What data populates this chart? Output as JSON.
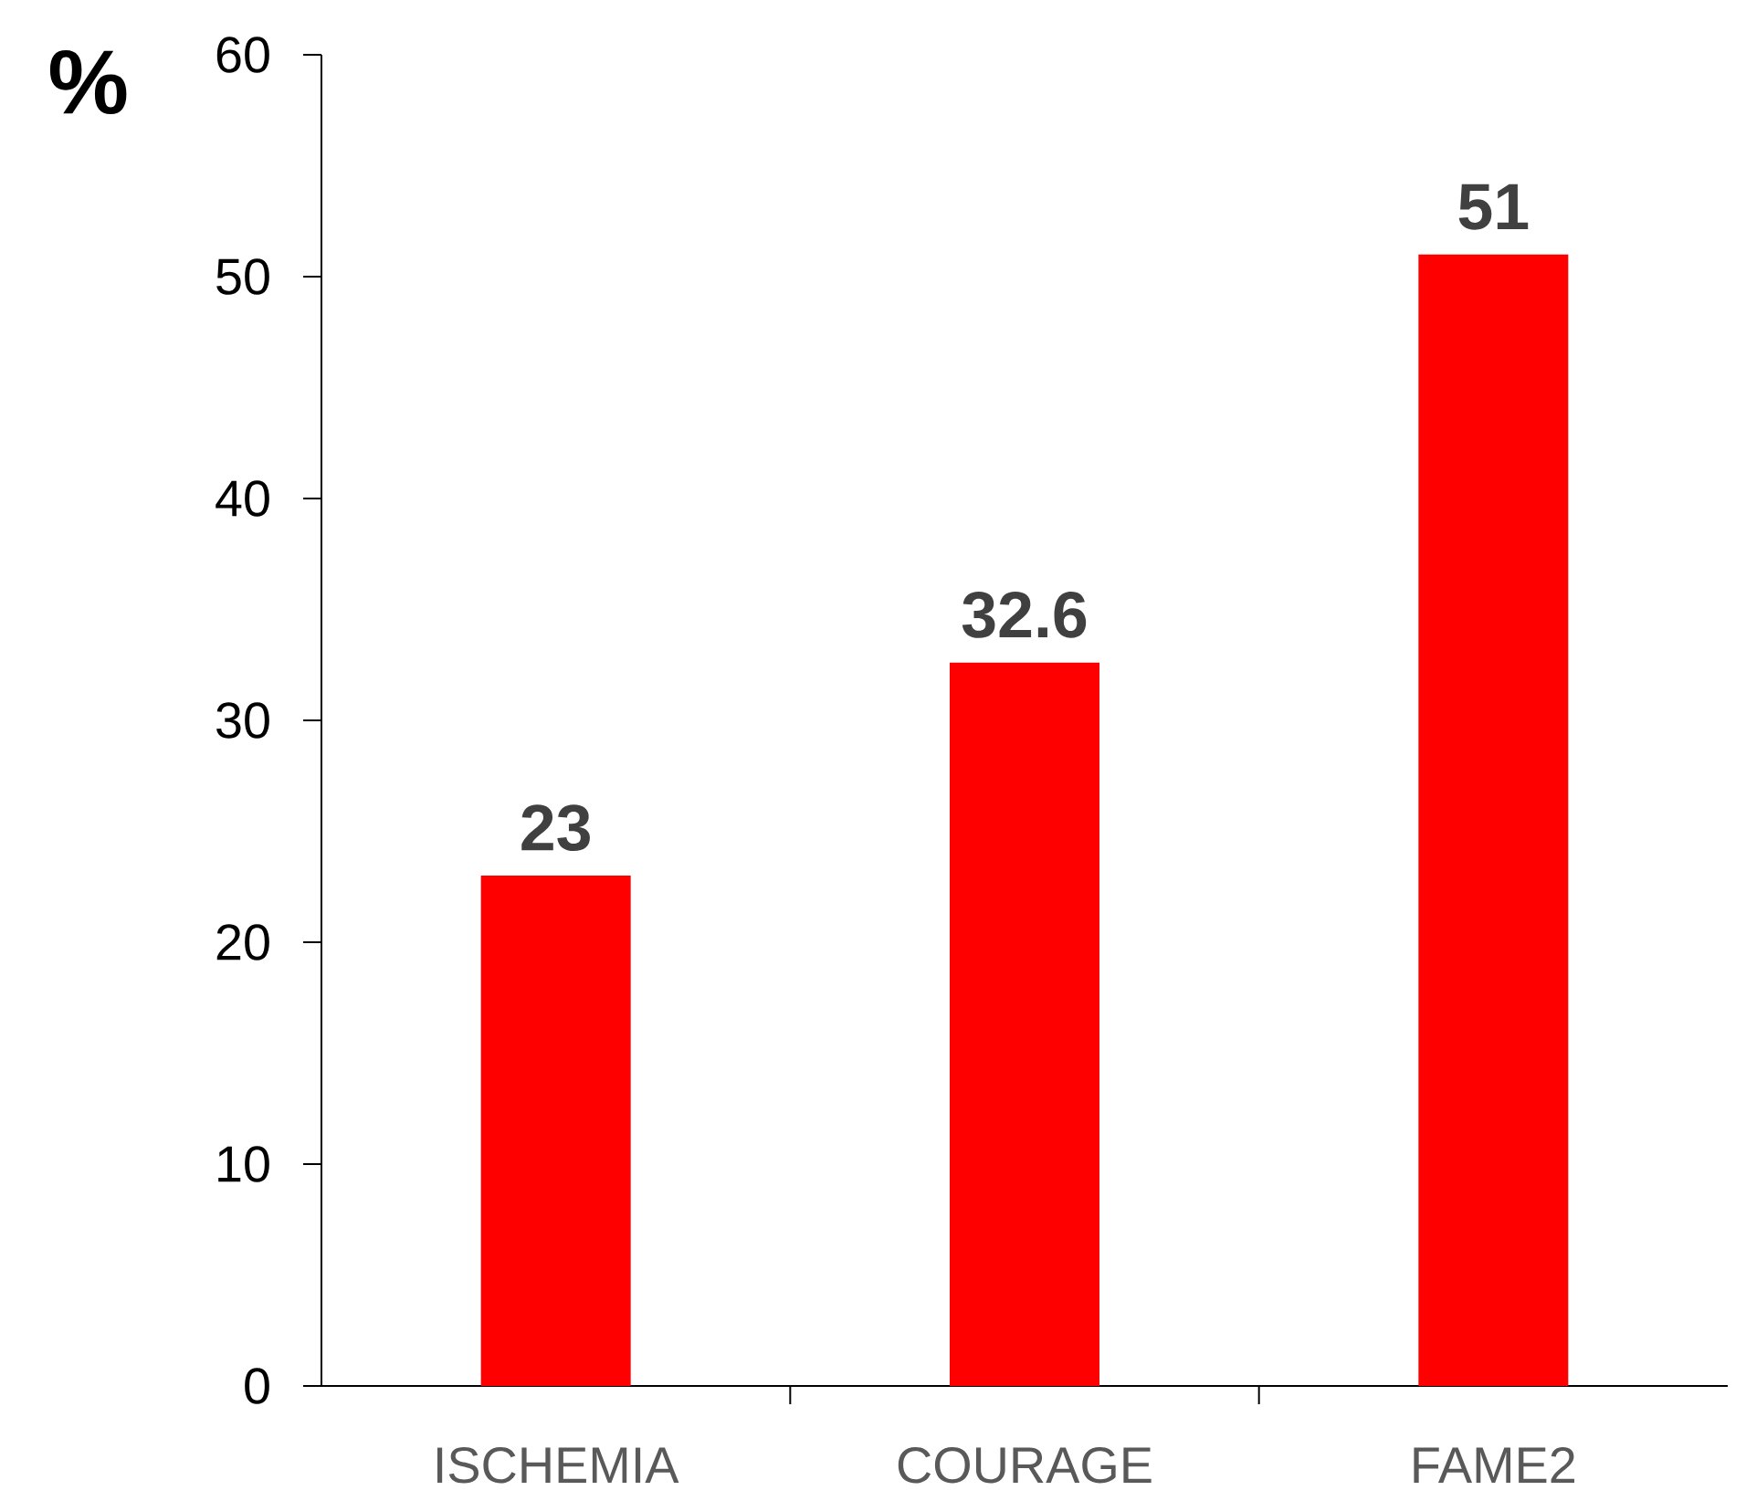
{
  "chart_data": {
    "type": "bar",
    "ylabel": "%",
    "categories": [
      "ISCHEMIA",
      "COURAGE",
      "FAME2"
    ],
    "values": [
      23,
      32.6,
      51
    ],
    "color": "#ff0000",
    "ylim": [
      0,
      60
    ],
    "yticks": [
      0,
      10,
      20,
      30,
      40,
      50,
      60
    ],
    "data_labels": true,
    "grid": false
  }
}
